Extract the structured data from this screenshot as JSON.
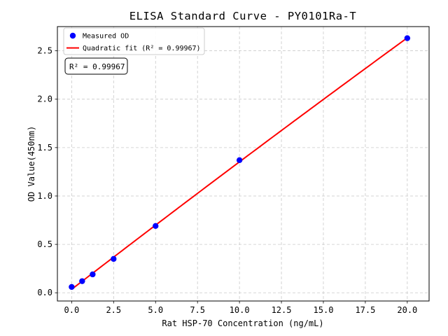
{
  "chart_data": {
    "type": "scatter",
    "title": "ELISA Standard Curve - PY0101Ra-T",
    "xlabel": "Rat HSP-70 Concentration (ng/mL)",
    "ylabel": "OD Value(450nm)",
    "xlim": [
      -0.85,
      21.3
    ],
    "ylim": [
      -0.085,
      2.75
    ],
    "x_tick_values": [
      0.0,
      2.5,
      5.0,
      7.5,
      10.0,
      12.5,
      15.0,
      17.5,
      20.0
    ],
    "x_tick_labels": [
      "0.0",
      "2.5",
      "5.0",
      "7.5",
      "10.0",
      "12.5",
      "15.0",
      "17.5",
      "20.0"
    ],
    "y_tick_values": [
      0.0,
      0.5,
      1.0,
      1.5,
      2.0,
      2.5
    ],
    "y_tick_labels": [
      "0.0",
      "0.5",
      "1.0",
      "1.5",
      "2.0",
      "2.5"
    ],
    "grid": true,
    "legend_position": "upper left",
    "series": [
      {
        "name": "Measured OD",
        "type": "scatter",
        "marker": "circle",
        "color": "#0000ff",
        "x": [
          0,
          0.625,
          1.25,
          2.5,
          5,
          10,
          20
        ],
        "y": [
          0.06,
          0.12,
          0.19,
          0.35,
          0.69,
          1.37,
          2.63
        ]
      },
      {
        "name": "Quadratic fit (R² = 0.99967)",
        "type": "line",
        "fit": "quadratic",
        "fit_range": [
          0,
          20
        ],
        "color": "#ff0000",
        "r_squared": 0.99967
      }
    ],
    "annotation": "R² = 0.99967"
  },
  "legend": {
    "measured_od_label": "Measured OD",
    "quadratic_fit_label": "Quadratic fit (R² = 0.99967)"
  },
  "annotation_box": {
    "text": "R² = 0.99967"
  },
  "colors": {
    "scatter_point": "#0000ff",
    "fit_line": "#ff0000",
    "grid_line": "#c9c9c9",
    "spine": "#000000",
    "legend_border": "#cccccc",
    "background": "#ffffff"
  }
}
